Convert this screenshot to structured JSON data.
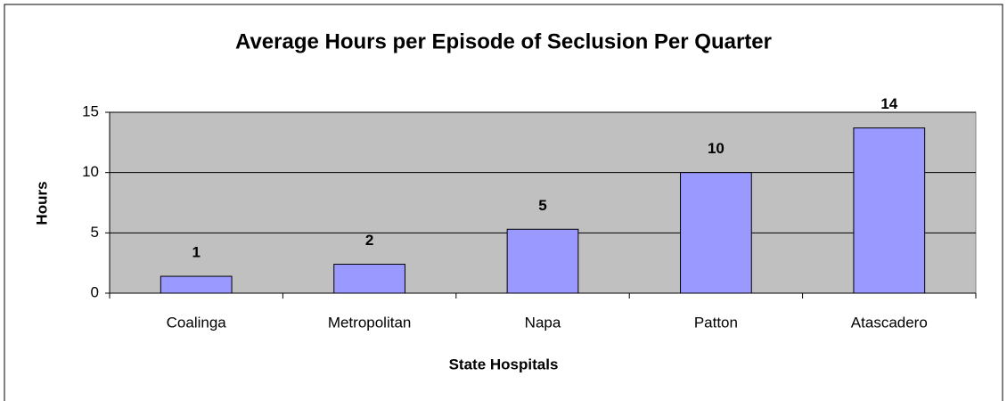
{
  "chart_data": {
    "type": "bar",
    "title": "Average Hours per Episode of Seclusion Per Quarter",
    "x_label": "State Hospitals",
    "y_label": "Hours",
    "categories": [
      "Coalinga",
      "Metropolitan",
      "Napa",
      "Patton",
      "Atascadero"
    ],
    "values": [
      1.4,
      2.4,
      5.3,
      10,
      13.7
    ],
    "value_labels": [
      "1",
      "2",
      "5",
      "10",
      "14"
    ],
    "color": "#9999ff",
    "ylim": [
      0,
      15
    ],
    "yticks": [
      0,
      5,
      10,
      15
    ],
    "grid": true
  }
}
